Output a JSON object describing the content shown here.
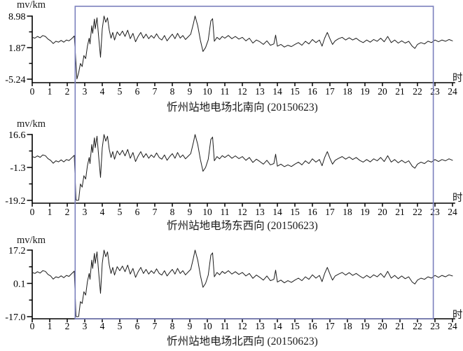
{
  "figure": {
    "unit_label": "mv/km",
    "x_axis_label": "时",
    "accent_color": "#7b80bd",
    "line_color": "#1c1c1c"
  },
  "chart_data": {
    "type": "line",
    "x_label": "时",
    "x_range": [
      0,
      24
    ],
    "x_ticks": [
      0,
      1,
      2,
      3,
      4,
      5,
      6,
      7,
      8,
      9,
      10,
      11,
      12,
      13,
      14,
      15,
      16,
      17,
      18,
      19,
      20,
      21,
      22,
      23,
      24
    ],
    "grid": false,
    "legend": "none",
    "annotation_box": {
      "x_start": 2.45,
      "x_end": 22.9,
      "color": "#7b80bd"
    },
    "x": [
      0,
      0.15,
      0.3,
      0.45,
      0.6,
      0.75,
      0.9,
      1.05,
      1.2,
      1.35,
      1.5,
      1.65,
      1.8,
      1.95,
      2.1,
      2.25,
      2.4,
      2.5,
      2.55,
      2.65,
      2.75,
      2.85,
      2.95,
      3.05,
      3.15,
      3.25,
      3.3,
      3.4,
      3.45,
      3.55,
      3.6,
      3.7,
      3.8,
      3.9,
      4,
      4.1,
      4.2,
      4.3,
      4.4,
      4.5,
      4.6,
      4.7,
      4.85,
      5,
      5.15,
      5.3,
      5.45,
      5.6,
      5.75,
      5.9,
      6.05,
      6.2,
      6.35,
      6.5,
      6.65,
      6.8,
      6.95,
      7.1,
      7.25,
      7.4,
      7.55,
      7.7,
      7.85,
      8,
      8.15,
      8.3,
      8.45,
      8.6,
      8.75,
      8.9,
      9.05,
      9.2,
      9.3,
      9.45,
      9.6,
      9.75,
      9.9,
      10.05,
      10.2,
      10.3,
      10.4,
      10.55,
      10.7,
      10.85,
      11,
      11.2,
      11.4,
      11.6,
      11.8,
      12,
      12.2,
      12.4,
      12.6,
      12.8,
      13,
      13.2,
      13.4,
      13.6,
      13.8,
      13.9,
      14,
      14.2,
      14.4,
      14.6,
      14.8,
      15,
      15.2,
      15.4,
      15.6,
      15.8,
      16,
      16.2,
      16.4,
      16.55,
      16.7,
      16.85,
      17,
      17.15,
      17.3,
      17.5,
      17.7,
      17.9,
      18.1,
      18.3,
      18.5,
      18.7,
      18.9,
      19.1,
      19.3,
      19.5,
      19.7,
      19.9,
      20.1,
      20.3,
      20.5,
      20.7,
      20.9,
      21.1,
      21.3,
      21.5,
      21.7,
      21.85,
      22,
      22.2,
      22.4,
      22.6,
      22.8,
      23,
      23.2,
      23.4,
      23.6,
      23.8,
      24
    ],
    "panels": [
      {
        "title": "忻州站地电场北南向 (20150623)",
        "ylabel": "mv/km",
        "y_ticks": [
          8.98,
          1.87,
          -5.24
        ],
        "y_tick_labels": [
          "8.98",
          "1.87",
          "-5.24"
        ],
        "ylim": [
          -5.24,
          8.98
        ],
        "values": [
          4.2,
          4,
          4.4,
          4.1,
          4.6,
          4.4,
          3.8,
          3.4,
          2.8,
          3.3,
          3.1,
          3.5,
          3.1,
          3.6,
          3.4,
          3.9,
          4.5,
          -1.7,
          -5.2,
          -3.8,
          -1.7,
          -2.4,
          0.1,
          -0.6,
          2.2,
          4,
          2.7,
          6.8,
          5.1,
          8.3,
          6.1,
          8.6,
          4,
          -0.3,
          6.1,
          9,
          7.6,
          8.6,
          5.8,
          4,
          5.3,
          3.6,
          5.4,
          4.6,
          5.6,
          4.4,
          5.8,
          3.9,
          5.1,
          3.2,
          4.4,
          5.3,
          4,
          4.9,
          3.9,
          4.6,
          4,
          5,
          4,
          3.6,
          4.6,
          3.4,
          4.2,
          4.9,
          3.9,
          5.1,
          4,
          4.6,
          3.7,
          4.3,
          4.9,
          7.2,
          9,
          6.8,
          3.6,
          1,
          1.9,
          3.6,
          7.9,
          8.4,
          3.3,
          4.2,
          3.7,
          4.4,
          4,
          4.6,
          3.9,
          4.4,
          3.8,
          4.2,
          3.4,
          4,
          2.9,
          3.6,
          3.2,
          2.6,
          3.4,
          2.4,
          2.7,
          4.7,
          2.2,
          2.6,
          2,
          2.4,
          2.1,
          2.6,
          3,
          2.4,
          3.3,
          2.7,
          3.7,
          3,
          3.6,
          2.2,
          4,
          5.3,
          3.9,
          2.6,
          3.4,
          3.9,
          4.2,
          3.6,
          4.1,
          3.6,
          4,
          3.4,
          3,
          3.6,
          3.1,
          3.7,
          3.3,
          4,
          3.2,
          4.4,
          3,
          3.6,
          2.9,
          3.4,
          2.9,
          3.3,
          2.2,
          1.7,
          2.6,
          3,
          2.7,
          3.3,
          3,
          3.6,
          3.2,
          3.6,
          3.3,
          3.7,
          3.4
        ]
      },
      {
        "title": "忻州站地电场东西向 (20150623)",
        "ylabel": "mv/km",
        "y_ticks": [
          16.6,
          -1.3,
          -19.2
        ],
        "y_tick_labels": [
          "16.6",
          "-1.3",
          "-19.2"
        ],
        "ylim": [
          -19.2,
          16.6
        ],
        "values": [
          4.6,
          4.1,
          5,
          4.2,
          5.5,
          5.1,
          3.5,
          2.6,
          1,
          2.3,
          1.7,
          2.8,
          1.7,
          3,
          2.5,
          3.9,
          5.3,
          -19,
          -19.2,
          -19.1,
          -10.3,
          -12,
          -5.8,
          -7.6,
          -0.4,
          4.1,
          0.8,
          11.2,
          6.8,
          14.8,
          9.4,
          15.7,
          4.1,
          -6.7,
          9.4,
          16.6,
          13,
          15.7,
          8.5,
          4.1,
          7.3,
          3.2,
          7.7,
          5.5,
          8,
          5,
          8.5,
          3.7,
          6.8,
          1.9,
          5,
          7.3,
          4.1,
          6.2,
          3.7,
          5.5,
          4.1,
          6.6,
          4.1,
          3.2,
          5.5,
          2.6,
          4.6,
          6.2,
          3.7,
          6.8,
          4.1,
          5.5,
          3.4,
          4.8,
          6.2,
          12.1,
          16.6,
          11.2,
          3.2,
          -3.4,
          -1.3,
          3.2,
          13.9,
          15.2,
          2.3,
          4.6,
          3.4,
          5.1,
          4.1,
          5.5,
          3.7,
          5,
          3.5,
          4.6,
          2.6,
          4.1,
          1.4,
          3.2,
          1.9,
          0.5,
          2.6,
          0.1,
          0.8,
          5.9,
          -0.6,
          0.5,
          -0.9,
          0.1,
          -0.8,
          0.5,
          1.6,
          0.1,
          2.3,
          0.8,
          3.4,
          1.6,
          3,
          -0.4,
          4.1,
          7.3,
          3.7,
          0.5,
          2.6,
          3.7,
          4.6,
          3.2,
          4.4,
          3,
          4.1,
          2.6,
          1.6,
          3,
          1.7,
          3.4,
          2.3,
          4.1,
          1.9,
          5.1,
          1.6,
          3,
          1.2,
          2.6,
          1.2,
          2.3,
          -0.6,
          -1.7,
          0.5,
          1.6,
          0.8,
          2.3,
          1.6,
          3,
          1.9,
          3,
          2.3,
          3.4,
          2.6
        ]
      },
      {
        "title": "忻州站地电场北西向 (20150623)",
        "ylabel": "mv/km",
        "y_ticks": [
          17.2,
          0.1,
          -17.0
        ],
        "y_tick_labels": [
          "17.2",
          "0.1",
          "-17.0"
        ],
        "ylim": [
          -17.0,
          17.2
        ],
        "values": [
          5.7,
          5.2,
          6.1,
          5.4,
          6.6,
          6.3,
          4.7,
          3.9,
          2.3,
          3.5,
          3,
          4,
          3,
          4.2,
          3.7,
          5.1,
          6.4,
          -16.9,
          -17,
          -16.9,
          -9.3,
          -10.2,
          -4.2,
          -5.9,
          1,
          5.2,
          2.2,
          12.1,
          7.8,
          15.5,
          10.4,
          16.3,
          5.2,
          -5,
          10.4,
          17.2,
          13.8,
          16.3,
          9.5,
          5.2,
          8.3,
          4.4,
          8.7,
          6.6,
          9,
          6.1,
          9.5,
          4.9,
          7.8,
          3.2,
          6.1,
          8.3,
          5.2,
          7.3,
          4.9,
          6.6,
          5.2,
          7.6,
          5.2,
          4.4,
          6.6,
          3.9,
          5.7,
          7.3,
          4.9,
          7.8,
          5.2,
          6.6,
          4.5,
          5.9,
          7.3,
          12.9,
          17.2,
          12.1,
          4.4,
          -1.9,
          0.1,
          4.4,
          14.6,
          15.8,
          3.5,
          5.7,
          4.5,
          6.3,
          5.2,
          6.6,
          4.9,
          6.1,
          4.7,
          5.7,
          3.9,
          5.2,
          2.7,
          4.4,
          3.2,
          1.8,
          3.9,
          1.5,
          2.2,
          6.9,
          0.8,
          1.8,
          0.4,
          1.5,
          0.6,
          1.8,
          2.8,
          1.5,
          3.5,
          2.2,
          4.5,
          2.8,
          4.2,
          1,
          5.2,
          8.3,
          4.9,
          1.8,
          3.9,
          4.9,
          5.7,
          4.4,
          5.6,
          4.2,
          5.2,
          3.9,
          2.8,
          4.2,
          3,
          4.5,
          3.5,
          5.2,
          3.2,
          6.3,
          2.8,
          4.2,
          2.5,
          3.9,
          2.5,
          3.5,
          0.8,
          -0.2,
          1.8,
          2.8,
          2.2,
          3.5,
          2.8,
          4.2,
          3.2,
          4.2,
          3.5,
          4.5,
          3.9
        ]
      }
    ]
  }
}
